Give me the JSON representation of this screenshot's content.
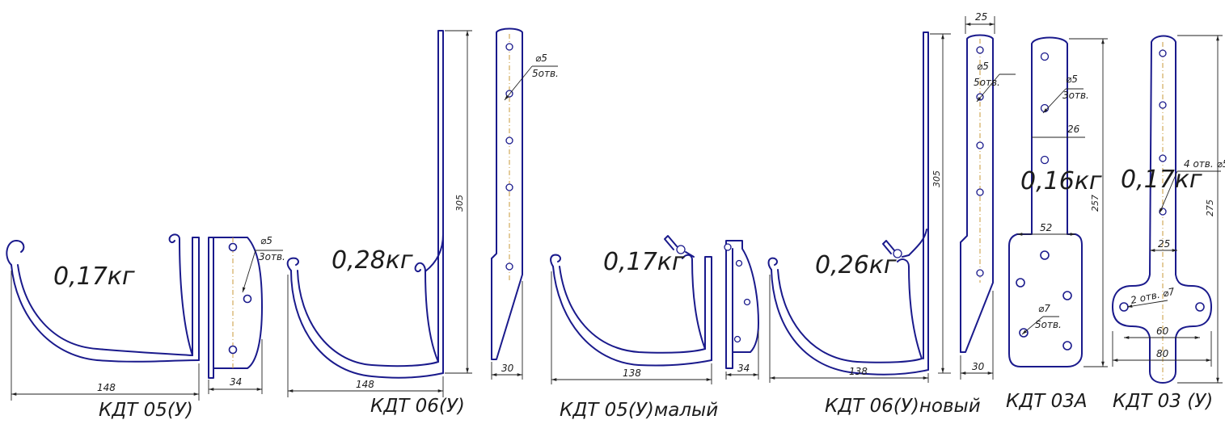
{
  "parts": [
    {
      "name": "КДТ 05(У)",
      "weight": "0,17кг",
      "dims": [
        "148",
        "34"
      ],
      "hole_note": [
        "⌀5",
        "3отв."
      ]
    },
    {
      "name": "КДТ 06(У)",
      "weight": "0,28кг",
      "dims": [
        "148",
        "305",
        "30"
      ],
      "hole_note": [
        "⌀5",
        "5отв."
      ]
    },
    {
      "name": "КДТ 05(У)малый",
      "weight": "0,17кг",
      "dims": [
        "138",
        "34"
      ]
    },
    {
      "name": "КДТ 06(У)новый",
      "weight": "0,26кг",
      "dims": [
        "138",
        "305",
        "25",
        "30"
      ],
      "hole_note": [
        "⌀5",
        "5отв."
      ]
    },
    {
      "name": "КДТ 03А",
      "weight": "0,16кг",
      "dims": [
        "26",
        "52",
        "257"
      ],
      "hole_note": [
        "⌀5",
        "3отв."
      ],
      "hole_note2": [
        "⌀7",
        "5отв."
      ]
    },
    {
      "name": "КДТ 03 (У)",
      "weight": "0,17кг",
      "dims": [
        "275",
        "25",
        "60",
        "80"
      ],
      "hole_note": "4 отв. ⌀5",
      "hole_note2": "2 отв. ⌀7"
    }
  ]
}
